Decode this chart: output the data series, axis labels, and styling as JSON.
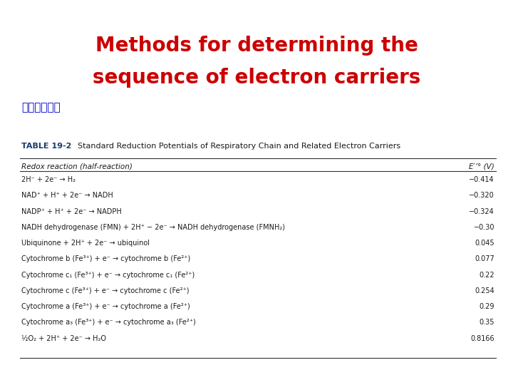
{
  "title_line1": "Methods for determining the",
  "title_line2": "sequence of electron carriers",
  "subtitle": "還原半電位表",
  "title_color": "#cc0000",
  "subtitle_color": "#0000cc",
  "table_label": "TABLE 19-2",
  "table_caption": "  Standard Reduction Potentials of Respiratory Chain and Related Electron Carriers",
  "col_header_left": "Redox reaction (half-reaction)",
  "col_header_right": "E′’° (V)",
  "rows": [
    {
      "reaction": "2H⁻ + 2e⁻ → H₂",
      "potential": "−0.414"
    },
    {
      "reaction": "NAD⁺ + H⁺ + 2e⁻ → NADH",
      "potential": "−0.320"
    },
    {
      "reaction": "NADP⁺ + H⁺ + 2e⁻ → NADPH",
      "potential": "−0.324"
    },
    {
      "reaction": "NADH dehydrogenase (FMN) + 2H⁺ − 2e⁻ → NADH dehydrogenase (FMNH₂)",
      "potential": "−0.30"
    },
    {
      "reaction": "Ubiquinone + 2H⁺ + 2e⁻ → ubiquinol",
      "potential": "0.045"
    },
    {
      "reaction": "Cytochrome b (Fe³⁺) + e⁻ → cytochrome b (Fe²⁺)",
      "potential": "0.077"
    },
    {
      "reaction": "Cytochrome c₁ (Fe³⁺) + e⁻ → cytochrome c₁ (Fe²⁺)",
      "potential": "0.22"
    },
    {
      "reaction": "Cytochrome c (Fe³⁺) + e⁻ → cytochrome c (Fe²⁺)",
      "potential": "0.254"
    },
    {
      "reaction": "Cytochrome a (Fe³⁺) + e⁻ → cytochrome a (Fe²⁺)",
      "potential": "0.29"
    },
    {
      "reaction": "Cytochrome a₃ (Fe³⁺) + e⁻ → cytochrome a₃ (Fe²⁺)",
      "potential": "0.35"
    },
    {
      "reaction": "½O₂ + 2H⁺ + 2e⁻ → H₂O",
      "potential": "0.8166"
    }
  ],
  "bg_color": "#ffffff",
  "text_color": "#1a1a1a",
  "table_label_color": "#1a3a6a",
  "figsize": [
    7.2,
    5.4
  ],
  "dpi": 100,
  "title_fontsize": 20,
  "subtitle_fontsize": 11,
  "table_label_fontsize": 8,
  "table_caption_fontsize": 8,
  "col_header_fontsize": 7.5,
  "row_fontsize": 7.0
}
